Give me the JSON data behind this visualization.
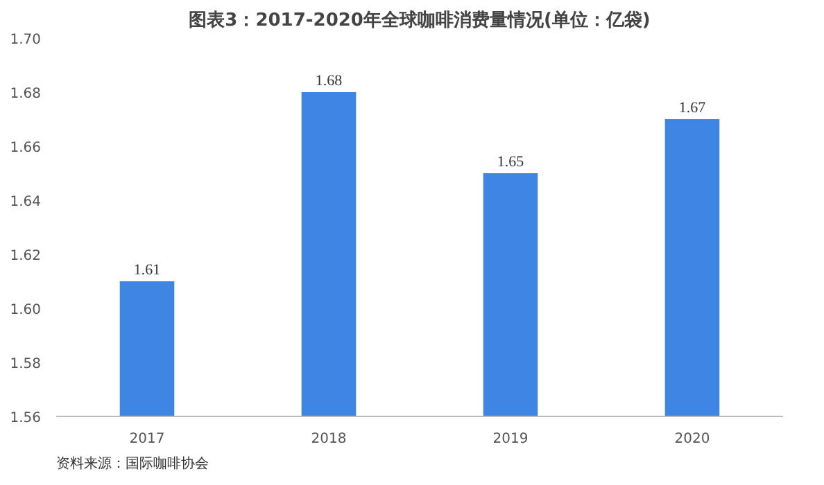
{
  "chart_data": {
    "type": "bar",
    "title": "图表3：2017-2020年全球咖啡消费量情况(单位：亿袋)",
    "categories": [
      "2017",
      "2018",
      "2019",
      "2020"
    ],
    "values": [
      1.61,
      1.68,
      1.65,
      1.67
    ],
    "color": "#3f86e4",
    "ylim": [
      1.56,
      1.7
    ],
    "yticks": [
      1.56,
      1.58,
      {
        "value": 1.6,
        "label": "1.60"
      },
      1.62,
      1.64,
      1.66,
      1.68,
      {
        "value": 1.7,
        "label": "1.70"
      }
    ],
    "data_labels": true,
    "grid": false,
    "annotations": [
      "资料来源：国际咖啡协会"
    ]
  }
}
